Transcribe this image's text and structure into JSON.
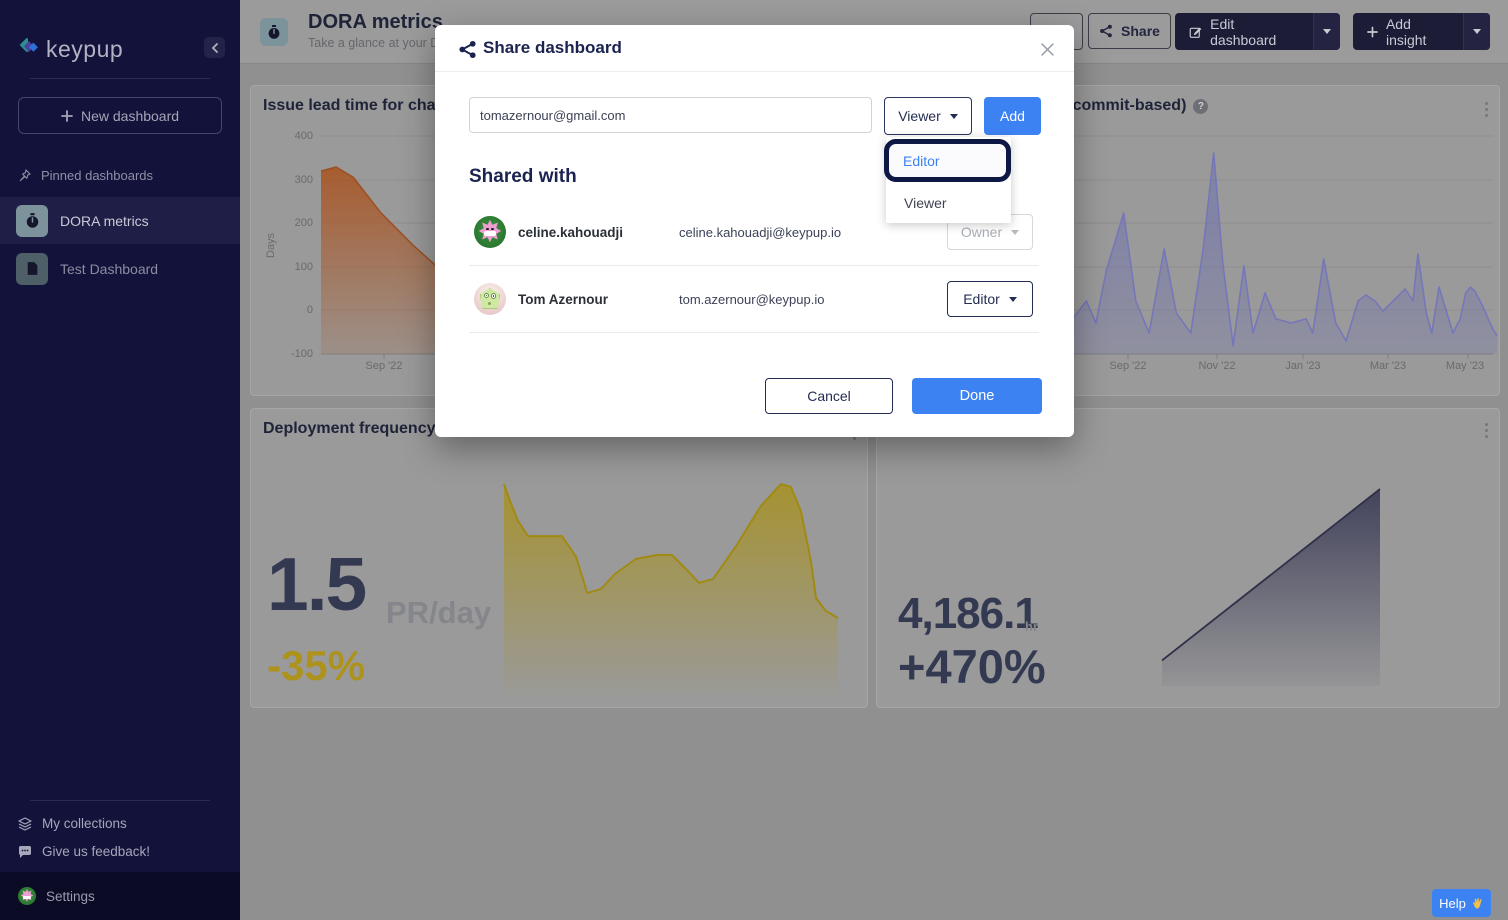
{
  "sidebar": {
    "brand": "keypup",
    "new_dashboard_label": "New dashboard",
    "pinned_heading": "Pinned dashboards",
    "items": [
      {
        "label": "DORA metrics"
      },
      {
        "label": "Test Dashboard"
      }
    ],
    "footer": {
      "collections": "My collections",
      "feedback": "Give us feedback!",
      "settings": "Settings"
    }
  },
  "header": {
    "title": "DORA metrics",
    "subtitle": "Take a glance at your De",
    "share_label": "Share",
    "edit_dashboard_label": "Edit dashboard",
    "add_insight_label": "Add insight"
  },
  "modal": {
    "title": "Share dashboard",
    "input_value": "tomazernour@gmail.com",
    "role_selector_value": "Viewer",
    "add_label": "Add",
    "dropdown_options": [
      {
        "label": "Editor"
      },
      {
        "label": "Viewer"
      }
    ],
    "shared_with_heading": "Shared with",
    "members": [
      {
        "name": "celine.kahouadji",
        "email": "celine.kahouadji@keypup.io",
        "role": "Owner"
      },
      {
        "name": "Tom Azernour",
        "email": "tom.azernour@keypup.io",
        "role": "Editor"
      }
    ],
    "cancel_label": "Cancel",
    "done_label": "Done"
  },
  "help": {
    "label": "Help"
  },
  "icons": {
    "help_q": "?"
  },
  "colors": {
    "accent_blue": "#3d82f2",
    "sidebar_bg": "#12123a",
    "navy_text": "#1e2338",
    "orange_series": "#a85a2c",
    "purple_series": "#7577b8",
    "yellow_series": "#a8911c",
    "dark_series": "#3b3b57"
  },
  "chart_data": [
    {
      "type": "area",
      "title": "Issue lead time for changes",
      "ylabel": "Days",
      "ylim": [
        -100,
        400
      ],
      "yticks": [
        "400",
        "300",
        "200",
        "100",
        "0",
        "-100"
      ],
      "xticks": [
        "Sep '22"
      ],
      "legend": null,
      "grid": true,
      "approx_series_days": [
        330,
        325,
        290,
        240,
        185,
        150,
        120,
        95,
        75,
        60,
        45,
        30
      ],
      "points": [
        [
          0,
          0.161
        ],
        [
          0.028,
          0.142
        ],
        [
          0.06,
          0.19
        ],
        [
          0.11,
          0.35
        ],
        [
          0.17,
          0.5
        ],
        [
          0.24,
          0.655
        ],
        [
          0.33,
          0.74
        ],
        [
          0.44,
          0.8
        ],
        [
          0.56,
          0.85
        ],
        [
          0.7,
          0.885
        ],
        [
          0.85,
          0.915
        ],
        [
          1,
          0.94
        ]
      ]
    },
    {
      "type": "area",
      "title": "Lead time for changes (commit-based)",
      "xticks": [
        "Sep '22",
        "Nov '22",
        "Jan '23",
        "Mar '23",
        "May '23"
      ],
      "grid": true,
      "points": [
        [
          0,
          0.711
        ],
        [
          0.022,
          0.803
        ],
        [
          0.046,
          0.757
        ],
        [
          0.071,
          0.872
        ],
        [
          0.096,
          0.826
        ],
        [
          0.121,
          0.894
        ],
        [
          0.154,
          0.849
        ],
        [
          0.187,
          0.917
        ],
        [
          0.22,
          0.872
        ],
        [
          0.253,
          0.917
        ],
        [
          0.281,
          0.885
        ],
        [
          0.301,
          0.826
        ],
        [
          0.32,
          0.757
        ],
        [
          0.336,
          0.858
        ],
        [
          0.353,
          0.619
        ],
        [
          0.382,
          0.353
        ],
        [
          0.402,
          0.757
        ],
        [
          0.424,
          0.904
        ],
        [
          0.449,
          0.518
        ],
        [
          0.469,
          0.812
        ],
        [
          0.493,
          0.904
        ],
        [
          0.513,
          0.528
        ],
        [
          0.531,
          0.078
        ],
        [
          0.546,
          0.583
        ],
        [
          0.563,
          0.963
        ],
        [
          0.581,
          0.596
        ],
        [
          0.596,
          0.904
        ],
        [
          0.616,
          0.72
        ],
        [
          0.634,
          0.839
        ],
        [
          0.659,
          0.858
        ],
        [
          0.684,
          0.839
        ],
        [
          0.695,
          0.904
        ],
        [
          0.713,
          0.564
        ],
        [
          0.733,
          0.858
        ],
        [
          0.75,
          0.94
        ],
        [
          0.77,
          0.757
        ],
        [
          0.783,
          0.729
        ],
        [
          0.798,
          0.757
        ],
        [
          0.811,
          0.803
        ],
        [
          0.828,
          0.757
        ],
        [
          0.848,
          0.702
        ],
        [
          0.861,
          0.757
        ],
        [
          0.869,
          0.541
        ],
        [
          0.883,
          0.812
        ],
        [
          0.892,
          0.904
        ],
        [
          0.904,
          0.693
        ],
        [
          0.917,
          0.812
        ],
        [
          0.927,
          0.904
        ],
        [
          0.939,
          0.839
        ],
        [
          0.948,
          0.72
        ],
        [
          0.956,
          0.693
        ],
        [
          0.963,
          0.711
        ],
        [
          0.972,
          0.757
        ],
        [
          0.98,
          0.803
        ],
        [
          0.987,
          0.849
        ],
        [
          0.994,
          0.89
        ],
        [
          1,
          0.917
        ]
      ]
    },
    {
      "type": "area",
      "title": "Deployment frequency",
      "big_value": "1.5",
      "unit": "PR/day",
      "delta": "-35%",
      "points": [
        [
          0,
          0.023
        ],
        [
          0.018,
          0.099
        ],
        [
          0.042,
          0.189
        ],
        [
          0.072,
          0.257
        ],
        [
          0.174,
          0.257
        ],
        [
          0.216,
          0.351
        ],
        [
          0.249,
          0.514
        ],
        [
          0.29,
          0.495
        ],
        [
          0.332,
          0.428
        ],
        [
          0.395,
          0.36
        ],
        [
          0.461,
          0.342
        ],
        [
          0.503,
          0.342
        ],
        [
          0.539,
          0.396
        ],
        [
          0.584,
          0.468
        ],
        [
          0.626,
          0.45
        ],
        [
          0.695,
          0.302
        ],
        [
          0.769,
          0.122
        ],
        [
          0.829,
          0.023
        ],
        [
          0.859,
          0.036
        ],
        [
          0.889,
          0.144
        ],
        [
          0.919,
          0.369
        ],
        [
          0.934,
          0.536
        ],
        [
          0.964,
          0.595
        ],
        [
          1,
          0.626
        ]
      ]
    },
    {
      "type": "area",
      "title": "",
      "big_value": "4,186.1",
      "unit": "hr",
      "delta": "+470%",
      "points": [
        [
          0,
          0.87
        ],
        [
          1,
          0
        ]
      ]
    }
  ]
}
